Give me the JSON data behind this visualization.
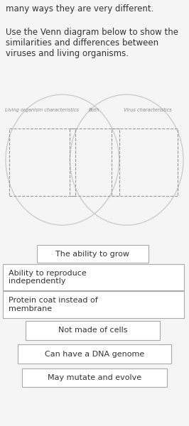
{
  "title_text": "many ways they are very different.",
  "instruction_text": "Use the Venn diagram below to show the\nsimilarities and differences between\nviruses and living organisms.",
  "venn_label_left": "Living organism characteristics",
  "venn_label_center": "Both",
  "venn_label_right": "Virus characteristics",
  "bg_top": "#f5f5f5",
  "bg_venn": "#ffffff",
  "bg_bottom": "#e8e8e8",
  "venn_circle_color": "#cccccc",
  "dashed_box_color": "#999999",
  "box_bg": "#ffffff",
  "box_edge": "#aaaaaa",
  "text_color": "#333333",
  "label_color": "#888888",
  "font_size_title": 8.5,
  "font_size_instruction": 8.5,
  "font_size_venn_label": 4.8,
  "font_size_box": 8.0,
  "box_configs": [
    {
      "bx": 0.2,
      "bw": 0.58,
      "by": 0.865,
      "bh": 0.085,
      "txt": "The ability to grow",
      "ha": "center"
    },
    {
      "bx": 0.02,
      "bw": 0.95,
      "by": 0.72,
      "bh": 0.13,
      "txt": "Ability to reproduce\nindependently",
      "ha": "left"
    },
    {
      "bx": 0.02,
      "bw": 0.95,
      "by": 0.575,
      "bh": 0.13,
      "txt": "Protein coat instead of\nmembrane",
      "ha": "left"
    },
    {
      "bx": 0.14,
      "bw": 0.7,
      "by": 0.46,
      "bh": 0.09,
      "txt": "Not made of cells",
      "ha": "center"
    },
    {
      "bx": 0.1,
      "bw": 0.8,
      "by": 0.335,
      "bh": 0.09,
      "txt": "Can have a DNA genome",
      "ha": "center"
    },
    {
      "bx": 0.12,
      "bw": 0.76,
      "by": 0.21,
      "bh": 0.09,
      "txt": "May mutate and evolve",
      "ha": "center"
    }
  ]
}
